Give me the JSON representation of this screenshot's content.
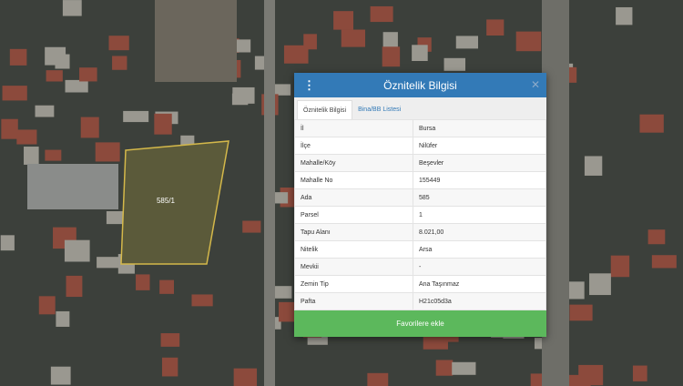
{
  "map": {
    "parcel_label": "585/1",
    "parcel_outline_color": "#d4b84a"
  },
  "dialog": {
    "title": "Öznitelik Bilgisi",
    "menu_icon": "vertical-dots-icon",
    "close_icon": "close-icon",
    "tabs": [
      {
        "label": "Öznitelik Bilgisi",
        "active": true
      },
      {
        "label": "Bina/BB Listesi",
        "active": false
      }
    ],
    "rows": [
      {
        "key": "İl",
        "value": "Bursa"
      },
      {
        "key": "İlçe",
        "value": "Nilüfer"
      },
      {
        "key": "Mahalle/Köy",
        "value": "Beşevler"
      },
      {
        "key": "Mahalle No",
        "value": "155449"
      },
      {
        "key": "Ada",
        "value": "585"
      },
      {
        "key": "Parsel",
        "value": "1"
      },
      {
        "key": "Tapu Alanı",
        "value": "8.021,00"
      },
      {
        "key": "Nitelik",
        "value": "Arsa"
      },
      {
        "key": "Mevkii",
        "value": "-"
      },
      {
        "key": "Zemin Tip",
        "value": "Ana Taşınmaz"
      },
      {
        "key": "Pafta",
        "value": "H21c05d3a"
      }
    ],
    "favorite_button": "Favorilere ekle"
  },
  "colors": {
    "header": "#337ab7",
    "button": "#5cb85c"
  }
}
